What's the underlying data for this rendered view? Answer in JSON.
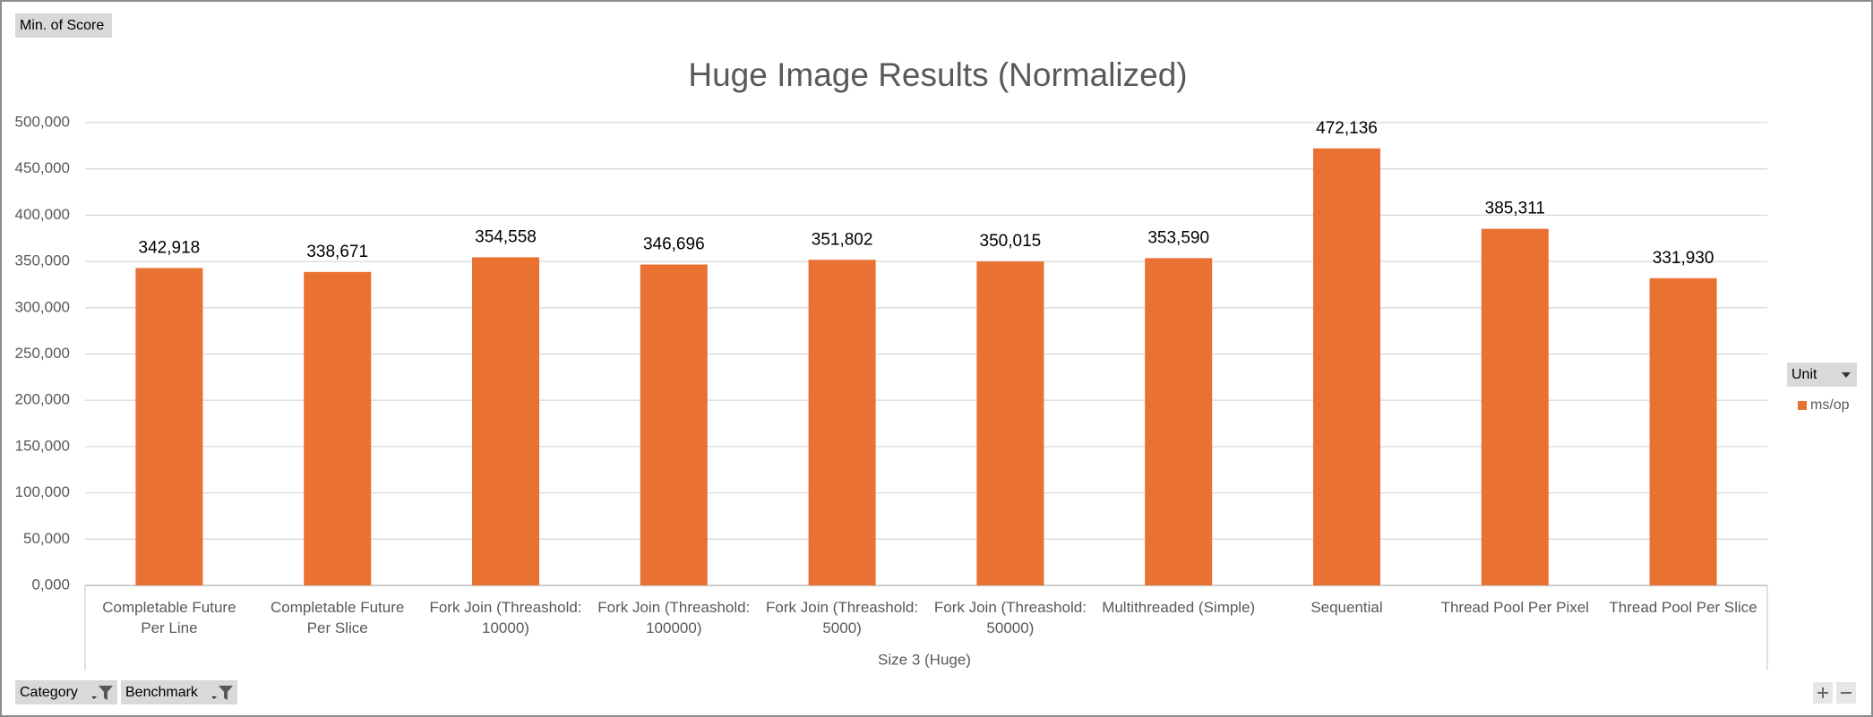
{
  "chart_data": {
    "type": "bar",
    "title": "Huge Image Results (Normalized)",
    "field_button": "Min. of Score",
    "x_group_label": "Size 3 (Huge)",
    "legend_title": "Unit",
    "legend_position": "right",
    "filter_buttons": [
      "Category",
      "Benchmark"
    ],
    "categories": [
      "Completable Future Per Line",
      "Completable Future Per Slice",
      "Fork Join (Threashold: 10000)",
      "Fork Join (Threashold: 100000)",
      "Fork Join (Threashold: 5000)",
      "Fork Join (Threashold: 50000)",
      "Multithreaded (Simple)",
      "Sequential",
      "Thread Pool Per Pixel",
      "Thread Pool Per Slice"
    ],
    "series": [
      {
        "name": "ms/op",
        "color": "#e97132",
        "values": [
          342918,
          338671,
          354558,
          346696,
          351802,
          350015,
          353590,
          472136,
          385311,
          331930
        ],
        "value_labels": [
          "342,918",
          "338,671",
          "354,558",
          "346,696",
          "351,802",
          "350,015",
          "353,590",
          "472,136",
          "385,311",
          "331,930"
        ]
      }
    ],
    "ylim": [
      0,
      500000
    ],
    "yticks": [
      {
        "value": 0,
        "label": "0,000"
      },
      {
        "value": 50000,
        "label": "50,000"
      },
      {
        "value": 100000,
        "label": "100,000"
      },
      {
        "value": 150000,
        "label": "150,000"
      },
      {
        "value": 200000,
        "label": "200,000"
      },
      {
        "value": 250000,
        "label": "250,000"
      },
      {
        "value": 300000,
        "label": "300,000"
      },
      {
        "value": 350000,
        "label": "350,000"
      },
      {
        "value": 400000,
        "label": "400,000"
      },
      {
        "value": 450000,
        "label": "450,000"
      },
      {
        "value": 500000,
        "label": "500,000"
      }
    ],
    "grid": true
  }
}
